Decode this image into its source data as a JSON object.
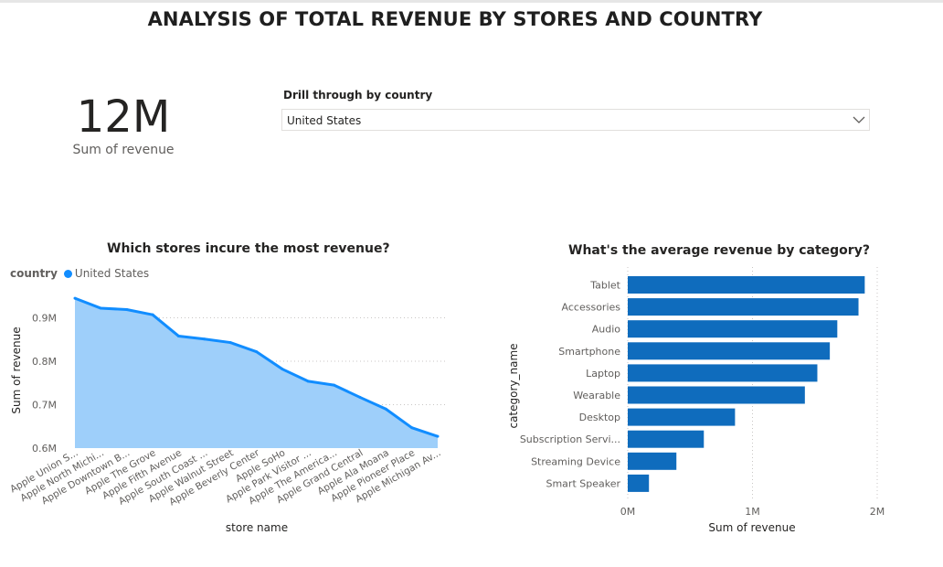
{
  "page": {
    "title": "ANALYSIS OF TOTAL REVENUE BY STORES AND COUNTRY"
  },
  "kpi": {
    "value": "12M",
    "label": "Sum of revenue"
  },
  "slicer": {
    "title": "Drill through by country",
    "selected": "United States"
  },
  "colors": {
    "area_line": "#118dff",
    "area_fill": "#9ecffa",
    "bar": "#0f6cbd"
  },
  "chart_data": [
    {
      "type": "area",
      "title": "Which stores incure the most revenue?",
      "legend": {
        "title": "country",
        "items": [
          "United States"
        ],
        "position": "top-left"
      },
      "xlabel": "store name",
      "ylabel": "Sum of revenue",
      "ylim": [
        0.6,
        0.96
      ],
      "yticks": [
        0.6,
        0.7,
        0.8,
        0.9
      ],
      "ytick_labels": [
        "0.6M",
        "0.7M",
        "0.8M",
        "0.9M"
      ],
      "grid": true,
      "categories": [
        "Apple Union S...",
        "Apple North Michi...",
        "Apple Downtown B...",
        "Apple The Grove",
        "Apple Fifth Avenue",
        "Apple South Coast ...",
        "Apple Walnut Street",
        "Apple Beverly Center",
        "Apple SoHo",
        "Apple Park Visitor ...",
        "Apple The America...",
        "Apple Grand Central",
        "Apple Ala Moana",
        "Apple Pioneer Place",
        "Apple Michigan Av..."
      ],
      "series": [
        {
          "name": "United States",
          "values": [
            0.945,
            0.922,
            0.919,
            0.907,
            0.858,
            0.851,
            0.843,
            0.822,
            0.782,
            0.754,
            0.745,
            0.717,
            0.69,
            0.647,
            0.627
          ]
        }
      ]
    },
    {
      "type": "bar",
      "orientation": "horizontal",
      "title": "What's the average revenue by category?",
      "xlabel": "Sum of revenue",
      "ylabel": "category_name",
      "xlim": [
        0,
        2
      ],
      "xticks": [
        0,
        1,
        2
      ],
      "xtick_labels": [
        "0M",
        "1M",
        "2M"
      ],
      "grid": true,
      "categories": [
        "Tablet",
        "Accessories",
        "Audio",
        "Smartphone",
        "Laptop",
        "Wearable",
        "Desktop",
        "Subscription Servi...",
        "Streaming Device",
        "Smart Speaker"
      ],
      "values": [
        1.9,
        1.85,
        1.68,
        1.62,
        1.52,
        1.42,
        0.86,
        0.61,
        0.39,
        0.17
      ]
    }
  ]
}
